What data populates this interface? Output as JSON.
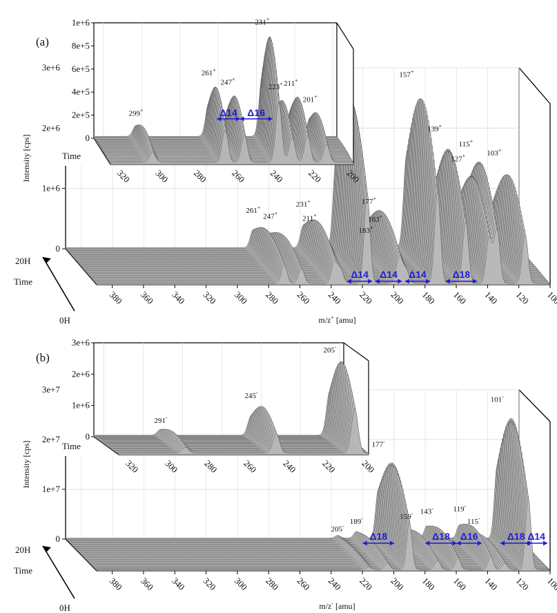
{
  "chart_data": [
    {
      "id": "a",
      "type": "area",
      "panel_label": "(a)",
      "xlabel": "m/z",
      "xlabel_sup": "+",
      "xlabel_unit": " [amu]",
      "ylabel": "Intensity [cps]",
      "xticks": [
        "380",
        "360",
        "340",
        "320",
        "300",
        "280",
        "260",
        "240",
        "220",
        "200",
        "180",
        "160",
        "140",
        "120",
        "100"
      ],
      "yticks": [
        "0",
        "1e+6",
        "2e+6",
        "3e+6"
      ],
      "xlim": [
        390,
        100
      ],
      "ylim": [
        0,
        3000000
      ],
      "time_labels": {
        "start": "0H",
        "end": "20H",
        "axis": "Time"
      },
      "peaks": [
        {
          "mz": 270,
          "intensity": 550000,
          "label": "261",
          "charge": "+"
        },
        {
          "mz": 259,
          "intensity": 450000,
          "label": "247",
          "charge": "+"
        },
        {
          "mz": 238,
          "intensity": 650000,
          "label": "231",
          "charge": "+"
        },
        {
          "mz": 234,
          "intensity": 420000,
          "label": "211",
          "charge": "+"
        },
        {
          "mz": 217,
          "intensity": 2750000,
          "label": "197",
          "charge": ""
        },
        {
          "mz": 196,
          "intensity": 700000,
          "label": "177",
          "charge": "+"
        },
        {
          "mz": 192,
          "intensity": 400000,
          "label": "163",
          "charge": "+"
        },
        {
          "mz": 198,
          "intensity": 220000,
          "label": "183",
          "charge": "+"
        },
        {
          "mz": 172,
          "intensity": 2800000,
          "label": "157",
          "charge": "+"
        },
        {
          "mz": 154,
          "intensity": 1900000,
          "label": "139",
          "charge": "+"
        },
        {
          "mz": 139,
          "intensity": 1400000,
          "label": "127",
          "charge": "+"
        },
        {
          "mz": 134,
          "intensity": 1650000,
          "label": "115",
          "charge": "+"
        },
        {
          "mz": 116,
          "intensity": 1500000,
          "label": "103",
          "charge": "+"
        }
      ],
      "deltas": [
        {
          "label": "Δ14",
          "from": 228,
          "to": 212
        },
        {
          "label": "Δ14",
          "from": 210,
          "to": 193
        },
        {
          "label": "Δ14",
          "from": 191,
          "to": 175
        },
        {
          "label": "Δ18",
          "from": 165,
          "to": 145
        }
      ],
      "inset": {
        "xticks": [
          "320",
          "300",
          "280",
          "260",
          "240",
          "220",
          "200"
        ],
        "yticks": [
          "0",
          "2e+5",
          "4e+5",
          "6e+5",
          "8e+5",
          "1e+6"
        ],
        "xlim": [
          325,
          198
        ],
        "ylim": [
          0,
          1000000
        ],
        "time_label": "Time",
        "peaks": [
          {
            "mz": 303,
            "intensity": 170000,
            "label": "299",
            "charge": "+"
          },
          {
            "mz": 265,
            "intensity": 520000,
            "label": "261",
            "charge": "+"
          },
          {
            "mz": 255,
            "intensity": 440000,
            "label": "247",
            "charge": "+"
          },
          {
            "mz": 237,
            "intensity": 960000,
            "label": "231",
            "charge": "+"
          },
          {
            "mz": 230,
            "intensity": 400000,
            "label": "223",
            "charge": "+"
          },
          {
            "mz": 222,
            "intensity": 430000,
            "label": "211",
            "charge": "+"
          },
          {
            "mz": 212,
            "intensity": 290000,
            "label": "201",
            "charge": "+"
          }
        ],
        "deltas": [
          {
            "label": "Δ14",
            "from": 265,
            "to": 253
          },
          {
            "label": "Δ16",
            "from": 253,
            "to": 236
          }
        ]
      }
    },
    {
      "id": "b",
      "type": "area",
      "panel_label": "(b)",
      "xlabel": "m/z",
      "xlabel_sup": "-",
      "xlabel_unit": " [amu]",
      "ylabel": "Intensity [cps]",
      "xticks": [
        "380",
        "360",
        "340",
        "320",
        "300",
        "280",
        "260",
        "240",
        "220",
        "200",
        "180",
        "160",
        "140",
        "120",
        "100"
      ],
      "yticks": [
        "0",
        "1e+7",
        "2e+7",
        "3e+7"
      ],
      "xlim": [
        390,
        100
      ],
      "ylim": [
        0,
        30000000
      ],
      "time_labels": {
        "start": "0H",
        "end": "20H",
        "axis": "Time"
      },
      "peaks": [
        {
          "mz": 216,
          "intensity": 1000000,
          "label": "205",
          "charge": "-"
        },
        {
          "mz": 204,
          "intensity": 2500000,
          "label": "189",
          "charge": "-"
        },
        {
          "mz": 190,
          "intensity": 18000000,
          "label": "177",
          "charge": "-"
        },
        {
          "mz": 172,
          "intensity": 3500000,
          "label": "159",
          "charge": "-"
        },
        {
          "mz": 159,
          "intensity": 4500000,
          "label": "143",
          "charge": "-"
        },
        {
          "mz": 138,
          "intensity": 5000000,
          "label": "119",
          "charge": "-"
        },
        {
          "mz": 129,
          "intensity": 2500000,
          "label": "115",
          "charge": "-"
        },
        {
          "mz": 114,
          "intensity": 27000000,
          "label": "101",
          "charge": "-"
        }
      ],
      "deltas": [
        {
          "label": "Δ18",
          "from": 218,
          "to": 198
        },
        {
          "label": "Δ18",
          "from": 178,
          "to": 158
        },
        {
          "label": "Δ16",
          "from": 158,
          "to": 142
        },
        {
          "label": "Δ18",
          "from": 130,
          "to": 110
        },
        {
          "label": "Δ14",
          "from": 114,
          "to": 100
        }
      ],
      "inset": {
        "xticks": [
          "320",
          "300",
          "280",
          "260",
          "240",
          "220",
          "200"
        ],
        "yticks": [
          "0",
          "1e+6",
          "2e+6",
          "3e+6"
        ],
        "xlim": [
          325,
          198
        ],
        "ylim": [
          0,
          3000000
        ],
        "time_label": "Time",
        "peaks": [
          {
            "mz": 291,
            "intensity": 350000,
            "label": "291",
            "charge": "-"
          },
          {
            "mz": 245,
            "intensity": 1150000,
            "label": "245",
            "charge": "-"
          },
          {
            "mz": 205,
            "intensity": 2600000,
            "label": "205",
            "charge": "-"
          }
        ],
        "deltas": []
      }
    }
  ]
}
